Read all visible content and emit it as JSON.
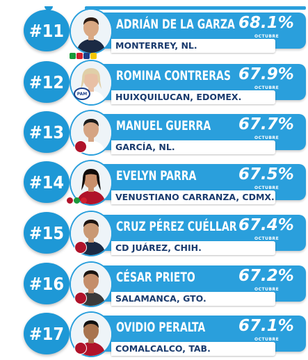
{
  "ranking": [
    {
      "rank": "#11",
      "name": "ADRIÁN DE LA GARZA",
      "location": "MONTERREY, NL.",
      "percent": "68.1%",
      "month": "OCTUBRE",
      "skin": "#d9a883",
      "hair": "#2a1a12",
      "shirt": "#1b2a44",
      "party": "coalition"
    },
    {
      "rank": "#12",
      "name": "ROMINA CONTRERAS",
      "location": "HUIXQUILUCAN, EDOMEX.",
      "percent": "67.9%",
      "month": "OCTUBRE",
      "skin": "#e8c0a5",
      "hair": "#e0cfa8",
      "shirt": "#ffffff",
      "party": "PAN"
    },
    {
      "rank": "#13",
      "name": "MANUEL GUERRA",
      "location": "GARCÍA, NL.",
      "percent": "67.7%",
      "month": "OCTUBRE",
      "skin": "#d5a483",
      "hair": "#1a1a1a",
      "shirt": "#ffffff",
      "party": "morena"
    },
    {
      "rank": "#14",
      "name": "EVELYN PARRA",
      "location": "VENUSTIANO CARRANZA, CDMX.",
      "percent": "67.5%",
      "month": "OCTUBRE",
      "skin": "#c98f6b",
      "hair": "#120c0a",
      "shirt": "#b0132a",
      "party": "coalition-morena"
    },
    {
      "rank": "#15",
      "name": "CRUZ PÉREZ CUÉLLAR",
      "location": "CD JUÁREZ, CHIH.",
      "percent": "67.4%",
      "month": "OCTUBRE",
      "skin": "#c99873",
      "hair": "#1c1410",
      "shirt": "#1b2a44",
      "party": "morena"
    },
    {
      "rank": "#16",
      "name": "CÉSAR PRIETO",
      "location": "SALAMANCA, GTO.",
      "percent": "67.2%",
      "month": "OCTUBRE",
      "skin": "#c48e6a",
      "hair": "#1a1410",
      "shirt": "#3a3a3a",
      "party": "morena"
    },
    {
      "rank": "#17",
      "name": "OVIDIO PERALTA",
      "location": "COMALCALCO, TAB.",
      "percent": "67.1%",
      "month": "OCTUBRE",
      "skin": "#a8744f",
      "hair": "#101010",
      "shirt": "#b0132a",
      "party": "morena"
    }
  ],
  "party_badge_text": {
    "pam": "PAM"
  },
  "colors": {
    "accent": "#2a9fdc",
    "rank_circle": "#1e98d6",
    "location_text": "#1a3b6e",
    "morena": "#b0132a"
  }
}
